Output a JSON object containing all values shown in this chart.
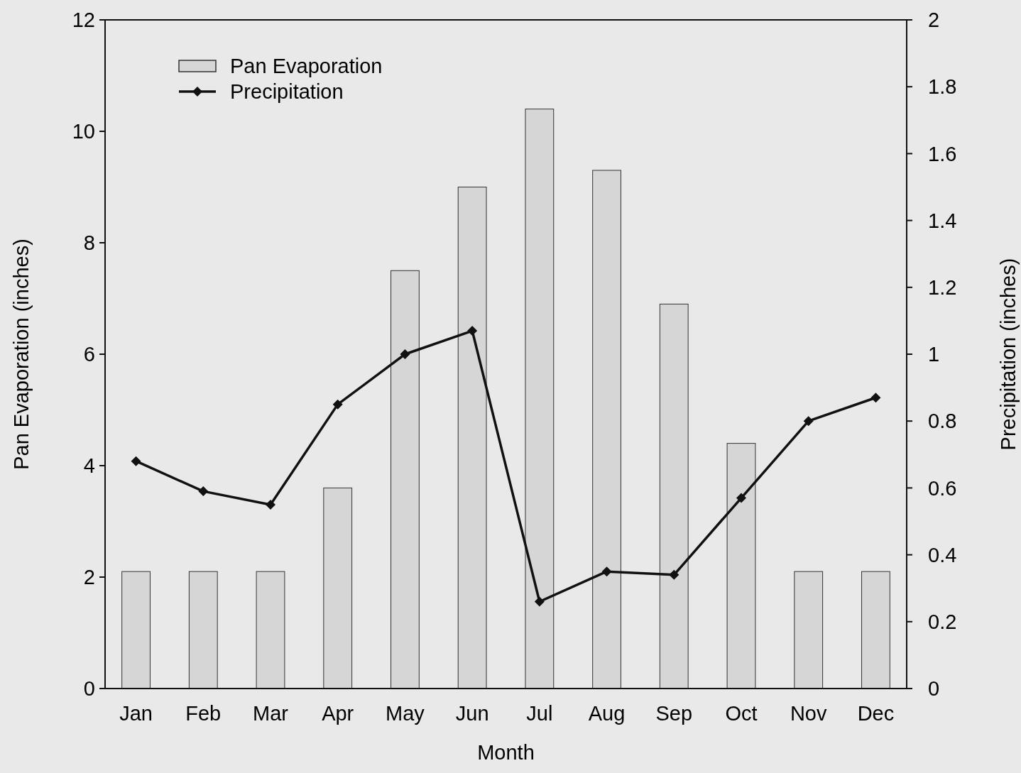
{
  "chart_data": {
    "type": "bar",
    "xlabel": "Month",
    "ylabel": "Pan Evaporation (inches)",
    "y2label": "Precipitation (inches)",
    "categories": [
      "Jan",
      "Feb",
      "Mar",
      "Apr",
      "May",
      "Jun",
      "Jul",
      "Aug",
      "Sep",
      "Oct",
      "Nov",
      "Dec"
    ],
    "series": [
      {
        "name": "Pan Evaporation",
        "color": "#d6d6d6",
        "values": [
          2.1,
          2.1,
          2.1,
          3.6,
          7.5,
          9.0,
          10.4,
          9.3,
          6.9,
          4.4,
          2.1,
          2.1
        ]
      },
      {
        "name": "Precipitation",
        "type": "line",
        "axis": "y2",
        "color": "#111111",
        "marker": "diamond",
        "values": [
          0.68,
          0.59,
          0.55,
          0.85,
          1.0,
          1.07,
          0.26,
          0.35,
          0.34,
          0.57,
          0.8,
          0.87
        ]
      }
    ],
    "ylim": [
      0,
      12
    ],
    "yticks": [
      0,
      2,
      4,
      6,
      8,
      10,
      12
    ],
    "y2lim": [
      0,
      2
    ],
    "y2ticks": [
      0,
      0.2,
      0.4,
      0.6,
      0.8,
      1,
      1.2,
      1.4,
      1.6,
      1.8,
      2
    ],
    "legend": "top left",
    "grid": false
  }
}
